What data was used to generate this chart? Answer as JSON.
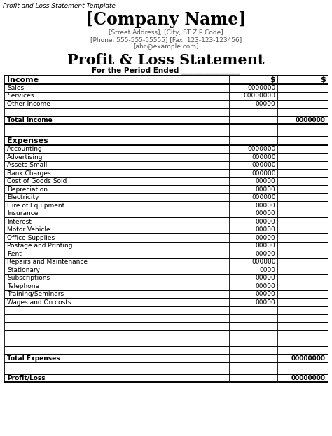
{
  "watermark": "Profit and Loss Statement Template",
  "company_name": "[Company Name]",
  "address": "[Street Address], [City, ST ZIP Code]",
  "phone_fax": "[Phone: 555-555-55555] [Fax: 123-123-123456]",
  "email": "[abc@example.com]",
  "title": "Profit & Loss Statement",
  "subtitle": "For the Period Ended ________________",
  "income_header": "Income",
  "col1_header": "$",
  "col2_header": "$",
  "income_rows": [
    [
      "Sales",
      "0000000",
      ""
    ],
    [
      "Services",
      "00000000",
      ""
    ],
    [
      "Other Income",
      "00000",
      ""
    ],
    [
      "",
      "",
      ""
    ]
  ],
  "total_income_label": "Total Income",
  "total_income_val": "0000000",
  "expenses_header": "Expenses",
  "expense_rows": [
    [
      "Accounting",
      "0000000",
      ""
    ],
    [
      "Advertising",
      "000000",
      ""
    ],
    [
      "Assets Small",
      "000000",
      ""
    ],
    [
      "Bank Charges",
      "000000",
      ""
    ],
    [
      "Cost of Goods Sold",
      "00000",
      ""
    ],
    [
      "Depreciation",
      "00000",
      ""
    ],
    [
      "Electricity",
      "000000",
      ""
    ],
    [
      "Hire of Equipment",
      "00000",
      ""
    ],
    [
      "Insurance",
      "00000",
      ""
    ],
    [
      "Interest",
      "00000",
      ""
    ],
    [
      "Motor Vehicle",
      "00000",
      ""
    ],
    [
      "Office Supplies",
      "00000",
      ""
    ],
    [
      "Postage and Printing",
      "00000",
      ""
    ],
    [
      "Rent",
      "00000",
      ""
    ],
    [
      "Repairs and Maintenance",
      "000000",
      ""
    ],
    [
      "Stationary",
      "0000",
      ""
    ],
    [
      "Subscriptions",
      "00000",
      ""
    ],
    [
      "Telephone",
      "00000",
      ""
    ],
    [
      "Training/Seminars",
      "00000",
      ""
    ],
    [
      "Wages and On costs",
      "00000",
      ""
    ],
    [
      "",
      "",
      ""
    ],
    [
      "",
      "",
      ""
    ],
    [
      "",
      "",
      ""
    ],
    [
      "",
      "",
      ""
    ],
    [
      "",
      "",
      ""
    ],
    [
      "",
      "",
      ""
    ]
  ],
  "total_expenses_label": "Total Expenses",
  "total_expenses_val": "00000000",
  "profit_loss_label": "Profit/Loss",
  "profit_loss_val": "00000000",
  "bg_color": "#ffffff",
  "font_size_watermark": 6.5,
  "font_size_company": 17,
  "font_size_address": 6.5,
  "font_size_title": 15,
  "font_size_subtitle": 7.5,
  "font_size_table_header": 8,
  "font_size_row": 6.5
}
